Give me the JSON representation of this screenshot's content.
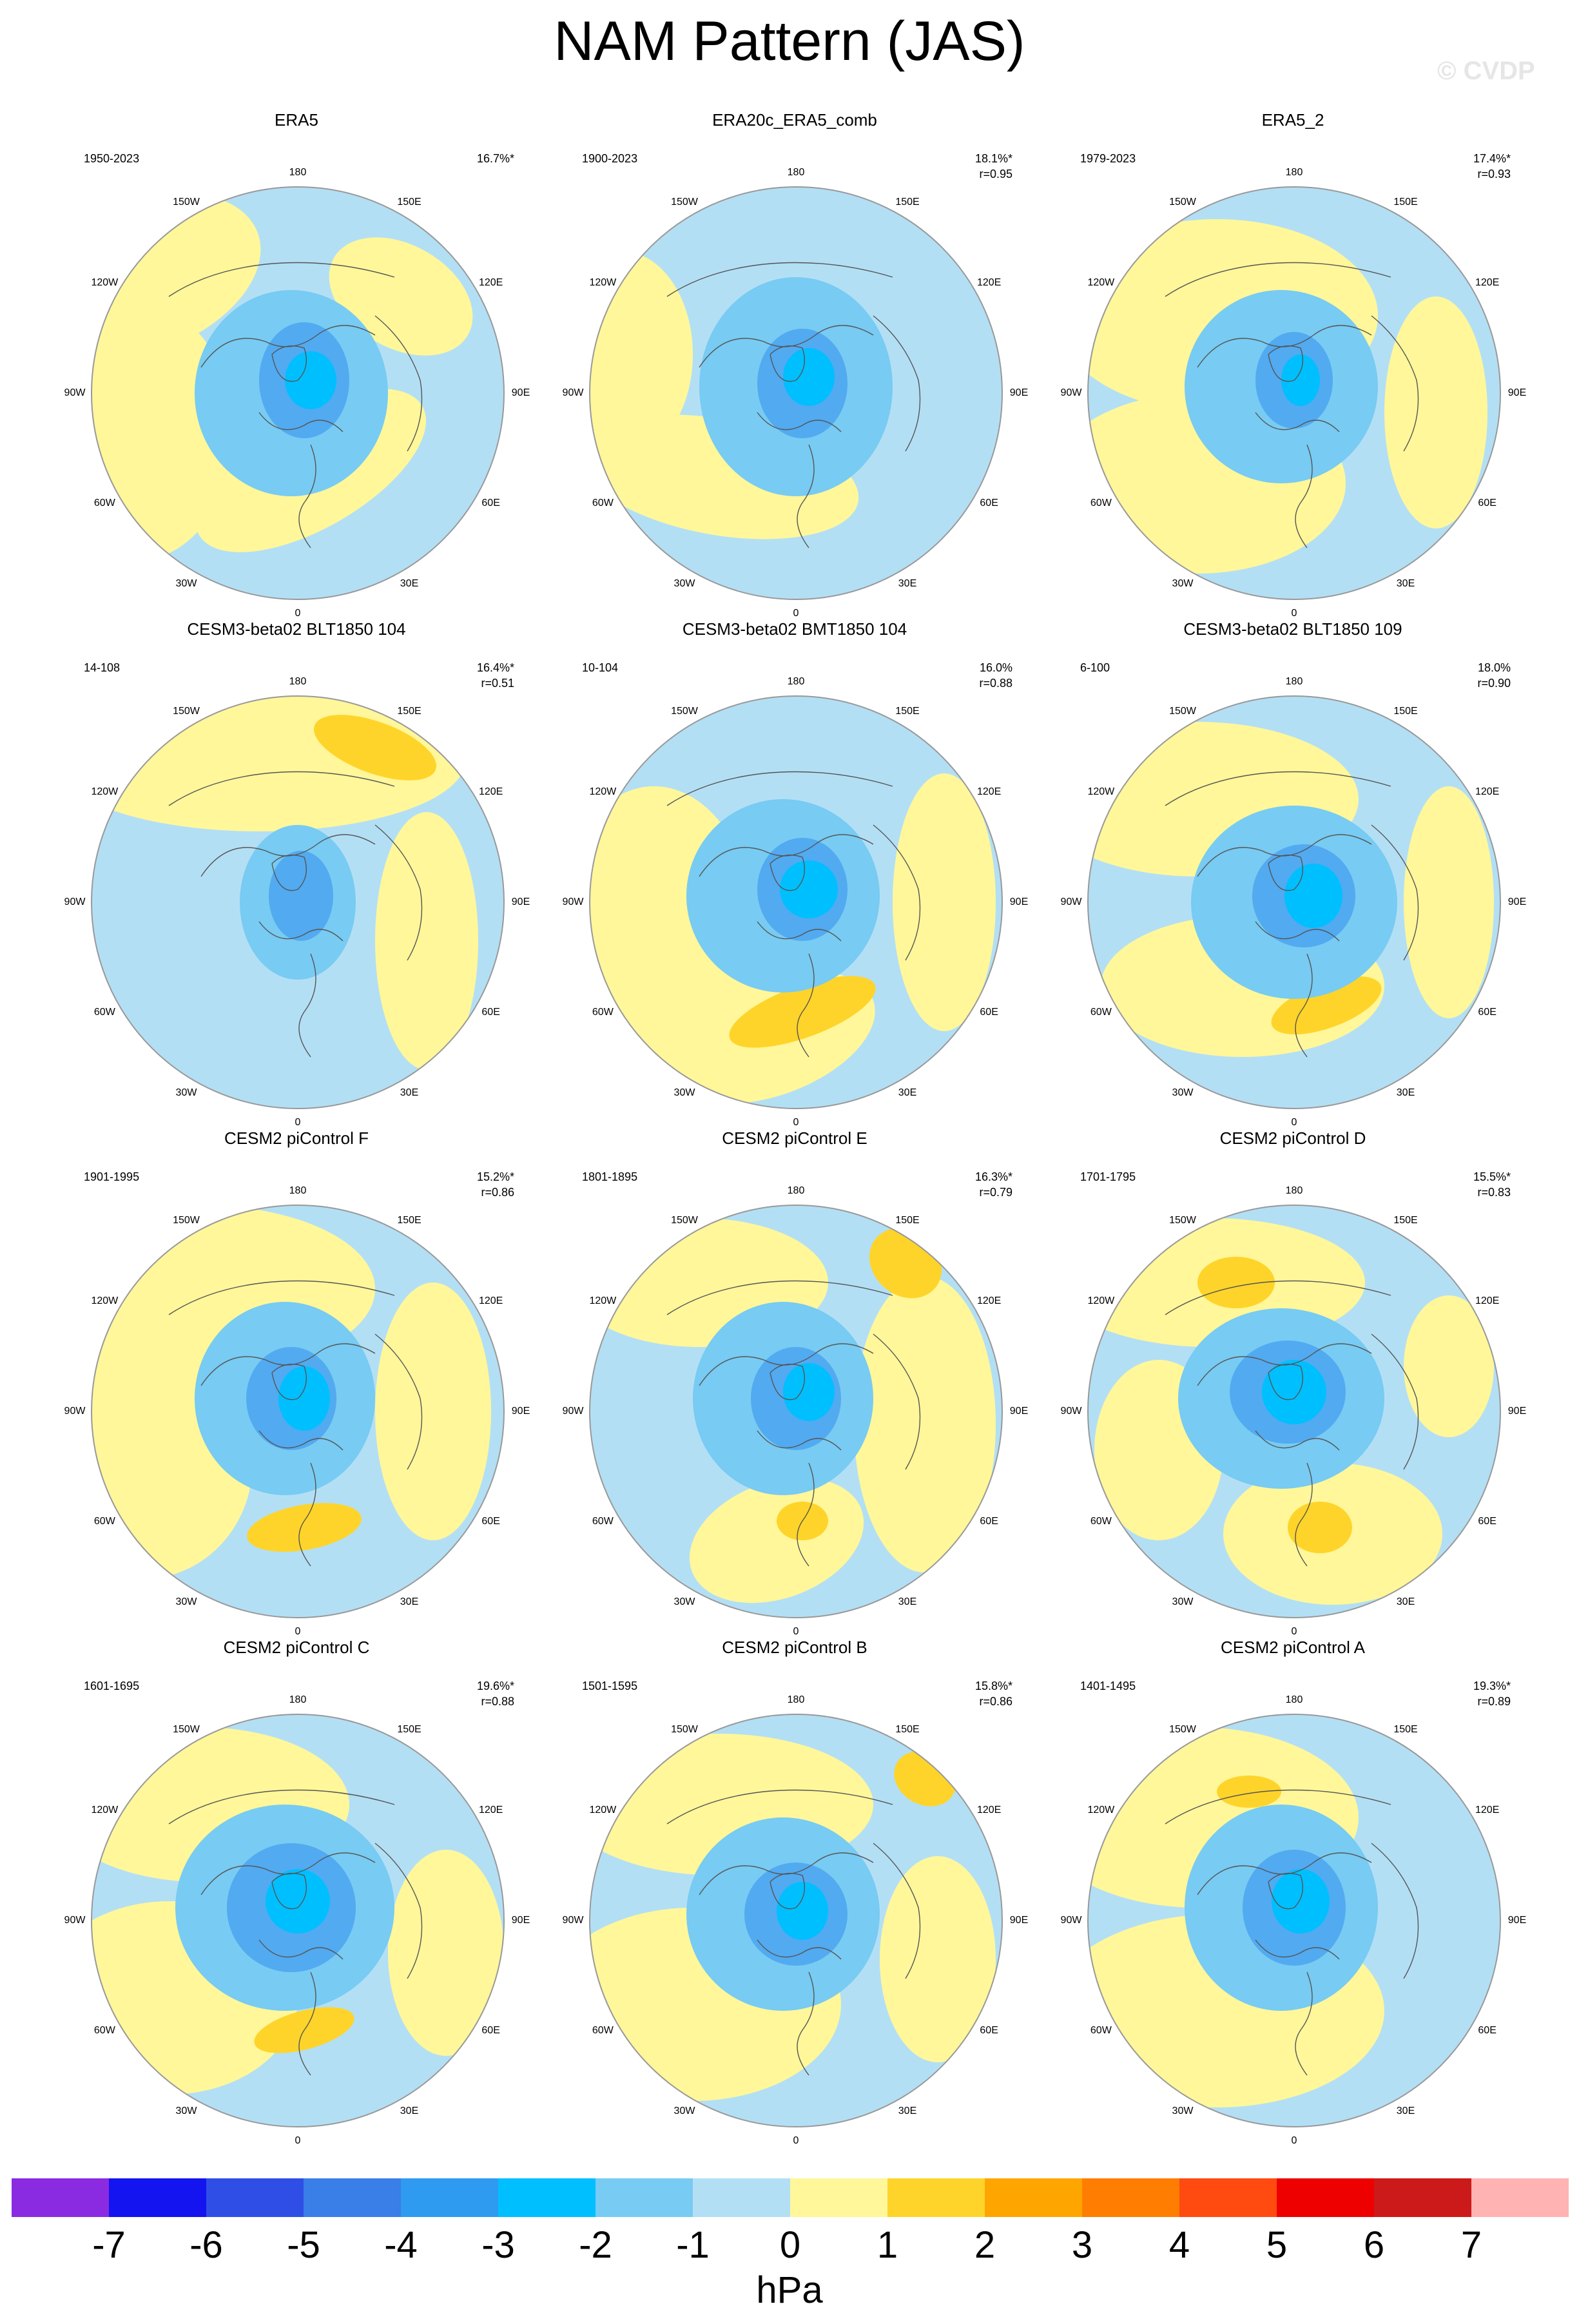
{
  "title": "NAM Pattern (JAS)",
  "watermark": "© CVDP",
  "lon_labels": [
    "180",
    "150E",
    "120E",
    "90E",
    "60E",
    "30E",
    "0",
    "30W",
    "60W",
    "90W",
    "120W",
    "150W"
  ],
  "panels": [
    {
      "title": "ERA5",
      "period": "1950-2023",
      "pct": "16.7%*",
      "r": "",
      "variant": 0
    },
    {
      "title": "ERA20c_ERA5_comb",
      "period": "1900-2023",
      "pct": "18.1%*",
      "r": "r=0.95",
      "variant": 1
    },
    {
      "title": "ERA5_2",
      "period": "1979-2023",
      "pct": "17.4%*",
      "r": "r=0.93",
      "variant": 2
    },
    {
      "title": "CESM3-beta02 BLT1850 104",
      "period": "14-108",
      "pct": "16.4%*",
      "r": "r=0.51",
      "variant": 3
    },
    {
      "title": "CESM3-beta02 BMT1850 104",
      "period": "10-104",
      "pct": "16.0%",
      "r": "r=0.88",
      "variant": 4
    },
    {
      "title": "CESM3-beta02 BLT1850 109",
      "period": "6-100",
      "pct": "18.0%",
      "r": "r=0.90",
      "variant": 5
    },
    {
      "title": "CESM2 piControl F",
      "period": "1901-1995",
      "pct": "15.2%*",
      "r": "r=0.86",
      "variant": 6
    },
    {
      "title": "CESM2 piControl E",
      "period": "1801-1895",
      "pct": "16.3%*",
      "r": "r=0.79",
      "variant": 7
    },
    {
      "title": "CESM2 piControl D",
      "period": "1701-1795",
      "pct": "15.5%*",
      "r": "r=0.83",
      "variant": 8
    },
    {
      "title": "CESM2 piControl C",
      "period": "1601-1695",
      "pct": "19.6%*",
      "r": "r=0.88",
      "variant": 9
    },
    {
      "title": "CESM2 piControl B",
      "period": "1501-1595",
      "pct": "15.8%*",
      "r": "r=0.86",
      "variant": 10
    },
    {
      "title": "CESM2 piControl A",
      "period": "1401-1495",
      "pct": "19.3%*",
      "r": "r=0.89",
      "variant": 11
    }
  ],
  "colorbar": {
    "colors": [
      "#8a2be2",
      "#1414f0",
      "#2f4ee6",
      "#3a7ee8",
      "#2e9bf0",
      "#00bfff",
      "#78cbf2",
      "#b3dff5",
      "#fff79a",
      "#ffd42a",
      "#ffa500",
      "#ff7d00",
      "#ff4a10",
      "#ee0000",
      "#cc1a1a",
      "#ffb3b3"
    ],
    "ticks": [
      "-7",
      "-6",
      "-5",
      "-4",
      "-3",
      "-2",
      "-1",
      "0",
      "1",
      "2",
      "3",
      "4",
      "5",
      "6",
      "7"
    ],
    "units": "hPa"
  },
  "fill_colors": {
    "positive_weak": "#fff79a",
    "positive_mid": "#ffd42a",
    "negative_weak": "#b3dff5",
    "negative_mid": "#78cbf2",
    "negative_strong": "#52aaf0",
    "negative_core": "#00bfff",
    "negative_deep": "#2e7ee8"
  }
}
